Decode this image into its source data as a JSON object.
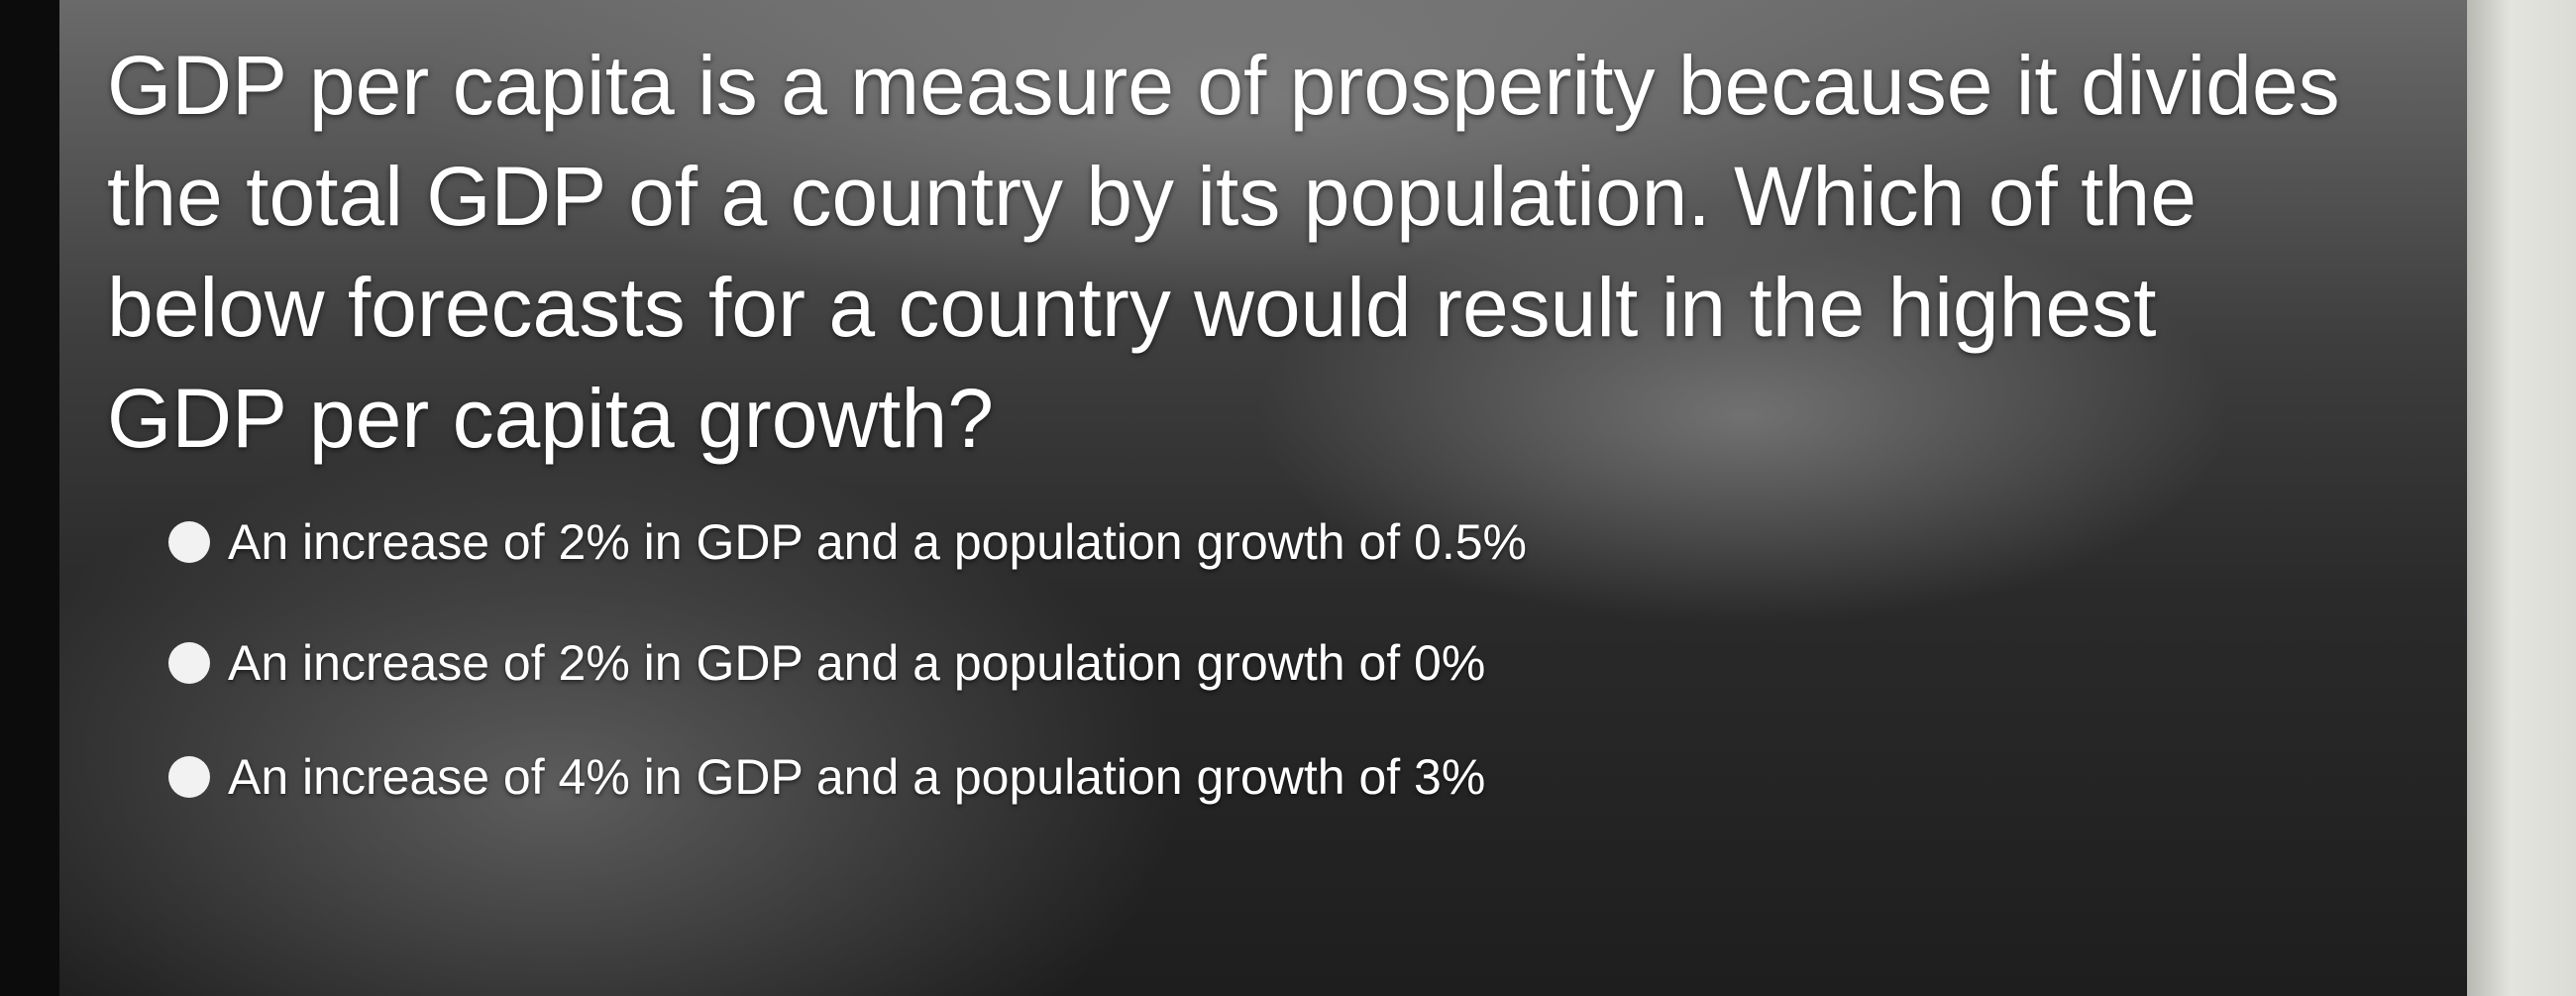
{
  "question": "GDP per capita is a measure of prosperity because it divides the total GDP of a country by its population. Which of the below forecasts for a country would result in the highest GDP per capita growth?",
  "options": [
    "An increase of 2% in GDP and a population growth of 0.5%",
    "An increase of 2% in GDP and a population growth of 0%",
    "An increase of 4% in GDP and a population growth of 3%"
  ]
}
